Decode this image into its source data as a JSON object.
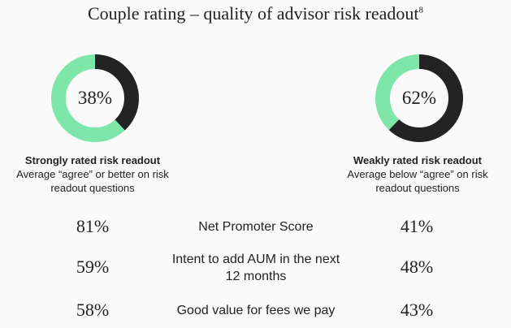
{
  "title": "Couple rating – quality of advisor risk readout",
  "title_footnote": "8",
  "colors": {
    "filled": "#232323",
    "remainder": "#7ee6a8"
  },
  "chart_data": {
    "type": "pie",
    "title": "Couple rating – quality of advisor risk readout",
    "donuts": [
      {
        "value": 38,
        "label": "38%",
        "heading": "Strongly rated risk readout",
        "desc1": "Average “agree” or better on risk",
        "desc2": "readout questions"
      },
      {
        "value": 62,
        "label": "62%",
        "heading": "Weakly rated risk readout",
        "desc1": "Average below “agree” on risk",
        "desc2": "readout questions"
      }
    ],
    "comparison": [
      {
        "line1": "Net Promoter Score",
        "line2": "",
        "strong": "81%",
        "weak": "41%"
      },
      {
        "line1": "Intent to add AUM in the next",
        "line2": "12 months",
        "strong": "59%",
        "weak": "48%"
      },
      {
        "line1": "Good value for fees we pay",
        "line2": "",
        "strong": "58%",
        "weak": "43%"
      }
    ]
  }
}
